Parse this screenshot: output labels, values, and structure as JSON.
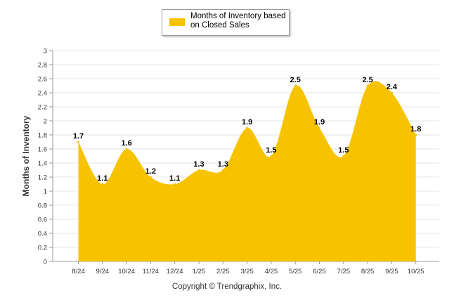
{
  "chart_data": {
    "type": "area",
    "title": "",
    "legend": {
      "label_line1": "Months of Inventory based",
      "label_line2": "on Closed Sales",
      "placement": "top-center"
    },
    "xlabel": "",
    "ylabel": "Months of Inventory",
    "categories": [
      "8/24",
      "9/24",
      "10/24",
      "11/24",
      "12/24",
      "1/25",
      "2/25",
      "3/25",
      "4/25",
      "5/25",
      "6/25",
      "7/25",
      "8/25",
      "9/25",
      "10/25"
    ],
    "series": [
      {
        "name": "Months of Inventory based on Closed Sales",
        "values": [
          1.7,
          1.1,
          1.6,
          1.2,
          1.1,
          1.3,
          1.3,
          1.9,
          1.5,
          2.5,
          1.9,
          1.5,
          2.5,
          2.4,
          1.8
        ],
        "color": "#F7C300"
      }
    ],
    "ylim": [
      0,
      3
    ],
    "yticks": [
      "0",
      "0.2",
      "0.4",
      "0.6",
      "0.8",
      "1",
      "1.2",
      "1.4",
      "1.6",
      "1.8",
      "2",
      "2.2",
      "2.4",
      "2.6",
      "2.8",
      "3"
    ],
    "grid": true
  },
  "footer": {
    "copyright": "Copyright © Trendgraphix, Inc."
  }
}
